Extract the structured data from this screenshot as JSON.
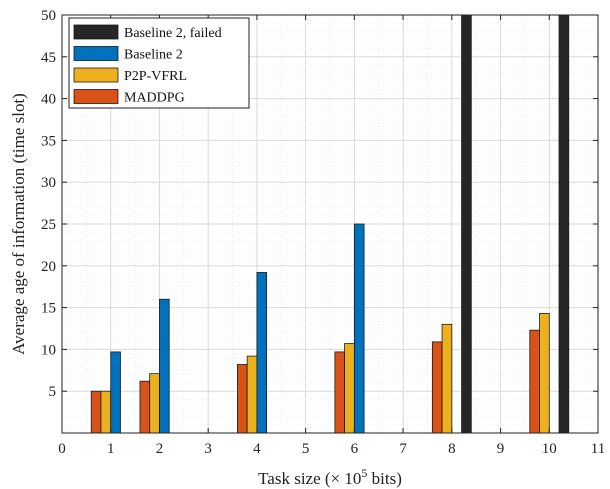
{
  "chart_data": {
    "type": "bar",
    "x": [
      1,
      2,
      4,
      6,
      8,
      10
    ],
    "xlim": [
      0,
      11
    ],
    "ylim": [
      0,
      50
    ],
    "xticks": [
      "0",
      "1",
      "2",
      "3",
      "4",
      "5",
      "6",
      "7",
      "8",
      "9",
      "10",
      "11"
    ],
    "yticks": [
      "5",
      "10",
      "15",
      "20",
      "25",
      "30",
      "35",
      "40",
      "45",
      "50"
    ],
    "xlabel_main": "Task size (× 10",
    "xlabel_sup": "5",
    "xlabel_tail": " bits)",
    "ylabel": "Average age of information (time slot)",
    "grid": true,
    "legend_position": "top-left",
    "series": [
      {
        "name": "MADDPG",
        "color": "#d95319",
        "values": [
          5.0,
          6.2,
          8.2,
          9.7,
          10.9,
          12.3
        ]
      },
      {
        "name": "P2P-VFRL",
        "color": "#edb120",
        "values": [
          5.0,
          7.1,
          9.2,
          10.7,
          13.0,
          14.3
        ]
      },
      {
        "name": "Baseline 2",
        "color": "#0072bd",
        "values": [
          9.7,
          16.0,
          19.2,
          25.0,
          null,
          null
        ]
      },
      {
        "name": "Baseline 2, failed",
        "color": "#262626",
        "values": [
          null,
          null,
          null,
          null,
          50,
          50
        ]
      }
    ],
    "legend_order": [
      3,
      2,
      1,
      0
    ]
  }
}
